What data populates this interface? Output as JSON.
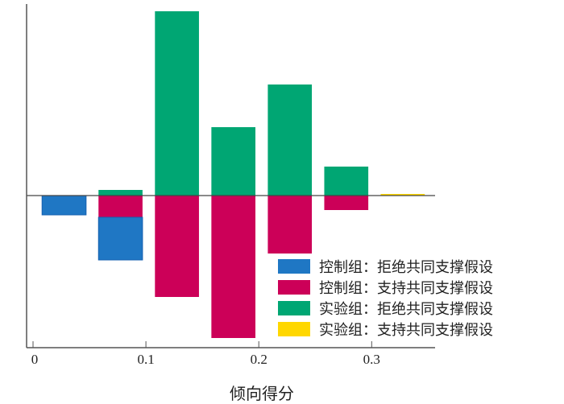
{
  "chart_data": {
    "type": "bar",
    "subtype": "mirrored-stacked-histogram",
    "title": "",
    "xlabel": "倾向得分",
    "ylabel": "",
    "xlim": [
      -0.007,
      0.355
    ],
    "ylim": [
      -190,
      230
    ],
    "xticks": [
      0,
      0.1,
      0.2,
      0.3
    ],
    "xtick_labels": [
      "0",
      "0.1",
      "0.2",
      "0.3"
    ],
    "bin_centers": [
      0.0275,
      0.0775,
      0.1275,
      0.1775,
      0.2275,
      0.2775,
      0.3275
    ],
    "bin_width": 0.039,
    "series": [
      {
        "name": "控制组：拒绝共同支撑假设",
        "color": "#1f77c4",
        "direction": "down",
        "values": [
          24,
          53,
          0,
          0,
          0,
          0,
          0
        ]
      },
      {
        "name": "控制组：支持共同支撑假设",
        "color": "#cc0058",
        "direction": "down",
        "values": [
          0,
          27,
          126,
          177,
          72,
          18,
          0
        ]
      },
      {
        "name": "实验组：拒绝共同支撑假设",
        "color": "#00a673",
        "direction": "up",
        "values": [
          0,
          7,
          229,
          85,
          138,
          36,
          0
        ]
      },
      {
        "name": "实验组：支持共同支撑假设",
        "color": "#ffd700",
        "direction": "up",
        "values": [
          0,
          0,
          0,
          0,
          0,
          0,
          2
        ]
      }
    ],
    "legend_position": "bottom-right",
    "grid": false
  }
}
